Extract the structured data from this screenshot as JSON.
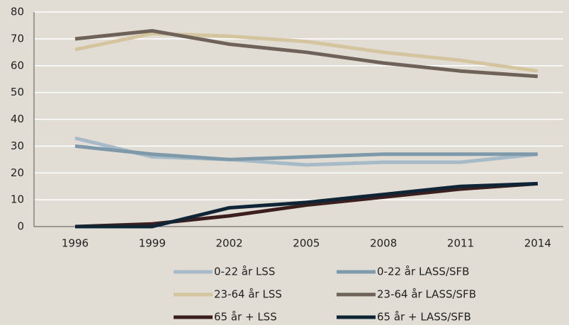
{
  "chart_data": {
    "type": "line",
    "categories": [
      "1996",
      "1999",
      "2002",
      "2005",
      "2008",
      "2011",
      "2014"
    ],
    "series": [
      {
        "name": "0-22 år LSS",
        "color": "#a7bac7",
        "values": [
          33,
          26,
          25,
          23,
          24,
          24,
          27
        ]
      },
      {
        "name": "0-22 år LASS/SFB",
        "color": "#7e99aa",
        "values": [
          30,
          27,
          25,
          26,
          27,
          27,
          27
        ]
      },
      {
        "name": "23-64 år LSS",
        "color": "#d4c59f",
        "values": [
          66,
          72,
          71,
          69,
          65,
          62,
          58
        ]
      },
      {
        "name": "23-64  år LASS/SFB",
        "color": "#6e6259",
        "values": [
          70,
          73,
          68,
          65,
          61,
          58,
          56
        ]
      },
      {
        "name": "65 år + LSS",
        "color": "#3b1f1f",
        "values": [
          0,
          1,
          4,
          8,
          11,
          14,
          16
        ]
      },
      {
        "name": "65 år + LASS/SFB",
        "color": "#0f2536",
        "values": [
          0,
          0,
          7,
          9,
          12,
          15,
          16
        ]
      }
    ],
    "ylim": [
      0,
      80
    ],
    "yticks": [
      0,
      10,
      20,
      30,
      40,
      50,
      60,
      70,
      80
    ],
    "grid": true
  }
}
